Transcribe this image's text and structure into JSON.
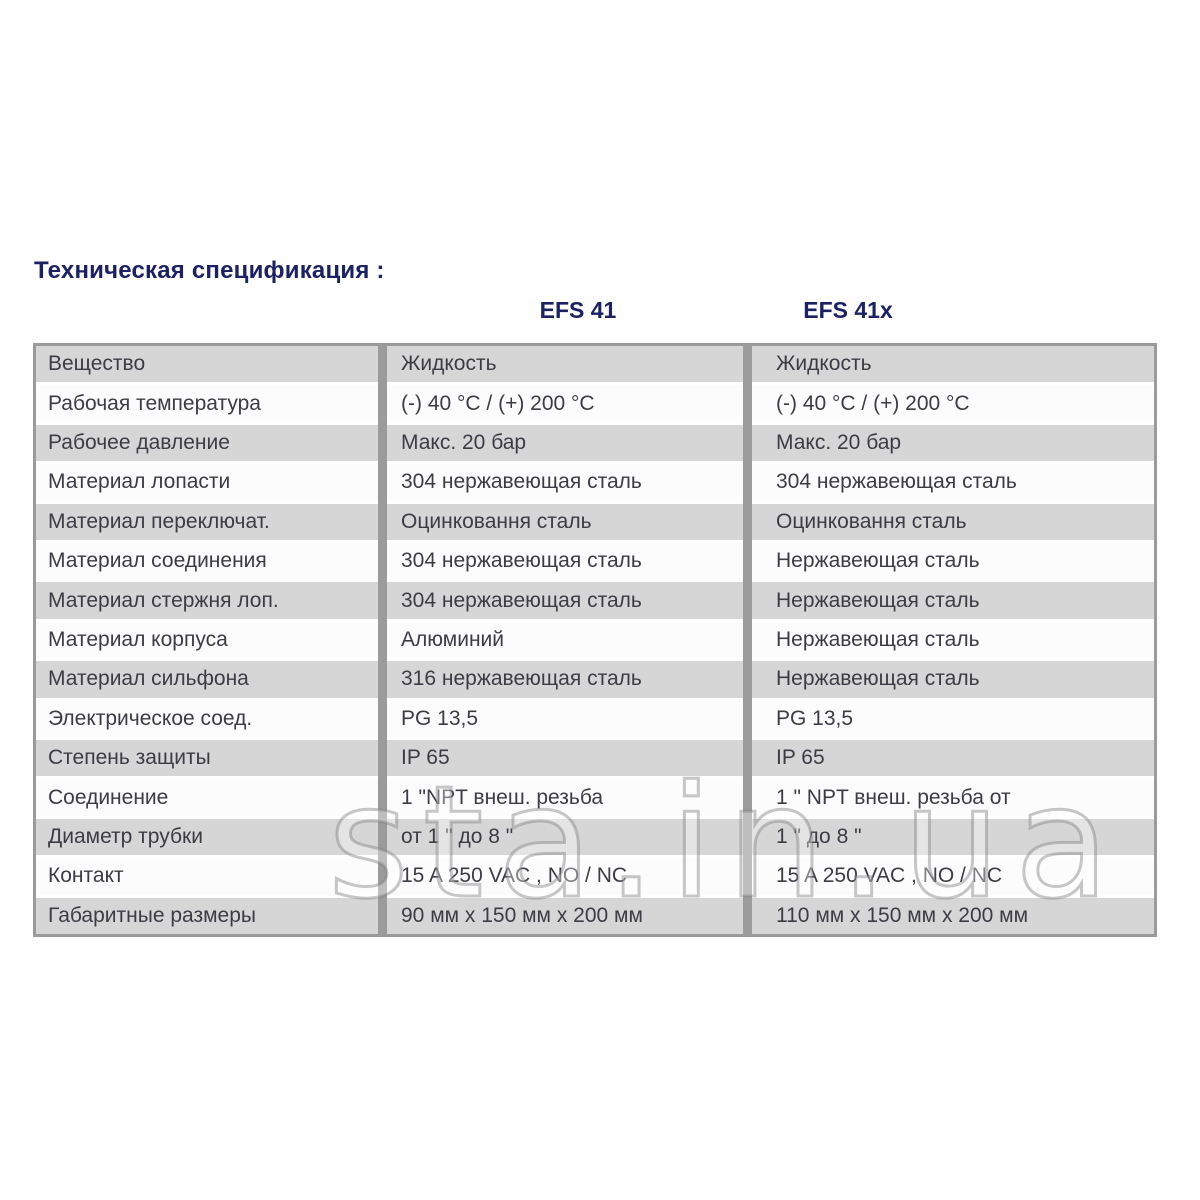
{
  "page": {
    "title": "Техническая спецификация :",
    "watermark": "sta.in.ua"
  },
  "colors": {
    "title_navy": "#1c2166",
    "row_gray": "#d6d6d6",
    "row_white": "#fcfcfc",
    "table_border": "#9b9b9b",
    "cell_text": "#3c3c44"
  },
  "table": {
    "col_headers": {
      "efs41": "EFS 41",
      "efs41x": "EFS 41x"
    },
    "rows": [
      {
        "label": "Вещество",
        "efs41": "Жидкость",
        "efs41x": "Жидкость"
      },
      {
        "label": "Рабочая температура",
        "efs41": "(-) 40 °C / (+) 200 °C",
        "efs41x": "(-) 40 °C / (+) 200 °C"
      },
      {
        "label": "Рабочее давление",
        "efs41": "Макс. 20 бар",
        "efs41x": "Макс. 20 бар"
      },
      {
        "label": "Материал лопасти",
        "efs41": "304 нержавеющая сталь",
        "efs41x": "304 нержавеющая сталь"
      },
      {
        "label": "Материал переключат.",
        "efs41": "Оцинковання сталь",
        "efs41x": "Оцинковання сталь"
      },
      {
        "label": "Материал соединения",
        "efs41": "304 нержавеющая сталь",
        "efs41x": "Нержавеющая сталь"
      },
      {
        "label": "Материал стержня лоп.",
        "efs41": "304 нержавеющая сталь",
        "efs41x": "Нержавеющая сталь"
      },
      {
        "label": "Материал корпуса",
        "efs41": "Алюминий",
        "efs41x": "Нержавеющая сталь"
      },
      {
        "label": "Материал сильфона",
        "efs41": "316 нержавеющая сталь",
        "efs41x": "Нержавеющая сталь"
      },
      {
        "label": "Электрическое соед.",
        "efs41": "PG 13,5",
        "efs41x": "PG 13,5"
      },
      {
        "label": "Степень защиты",
        "efs41": "IP 65",
        "efs41x": "IP 65"
      },
      {
        "label": "Соединение",
        "efs41": "1 \"NPT  внеш. резьба",
        "efs41x": "1 \" NPT  внеш. резьба от"
      },
      {
        "label": "Диаметр трубки",
        "efs41": "от 1 \" до 8 \"",
        "efs41x": "1 \" до 8 \""
      },
      {
        "label": "Контакт",
        "efs41": "15 A 250 VAC , NO / NC",
        "efs41x": "15 A 250 VAC , NO / NC"
      },
      {
        "label": "Габаритные размеры",
        "efs41": "90 мм x 150 мм x 200 мм",
        "efs41x": "110 мм x 150 мм x 200 мм"
      }
    ]
  }
}
